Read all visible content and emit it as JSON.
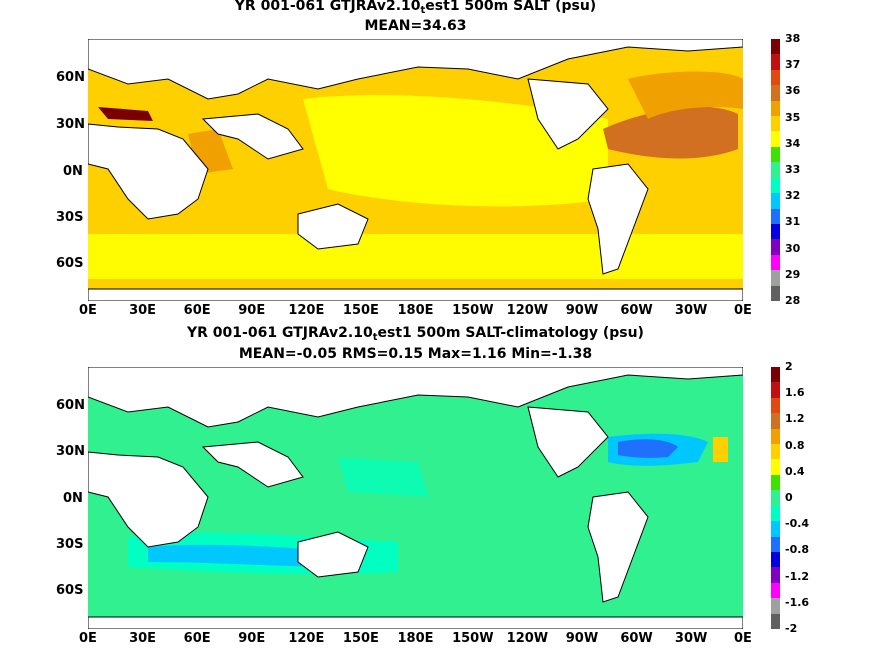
{
  "panels": [
    {
      "title_main": "YR 001-061 GTJRAv2.10",
      "title_sub": "t",
      "title_rest": "est1 500m SALT (psu)",
      "subtitle": "MEAN=34.63",
      "colorbar": {
        "labels": [
          "38",
          "37",
          "36",
          "35",
          "34",
          "33",
          "32",
          "31",
          "30",
          "29",
          "28"
        ],
        "colors": [
          "#7a0000",
          "#c01010",
          "#e04a10",
          "#d07020",
          "#f0a000",
          "#ffd000",
          "#ffff00",
          "#40e000",
          "#30f090",
          "#00ffc0",
          "#00c8ff",
          "#2070ff",
          "#0000e0",
          "#8000c0",
          "#ff00ff",
          "#a0a0a0",
          "#606060"
        ]
      }
    },
    {
      "title_main": "YR 001-061 GTJRAv2.10",
      "title_sub": "t",
      "title_rest": "est1 500m SALT-climatology (psu)",
      "subtitle": "MEAN=-0.05   RMS=0.15   Max=1.16   Min=-1.38",
      "colorbar": {
        "labels": [
          "2",
          "1.6",
          "1.2",
          "0.8",
          "0.4",
          "0",
          "-0.4",
          "-0.8",
          "-1.2",
          "-1.6",
          "-2"
        ],
        "colors": [
          "#7a0000",
          "#c01010",
          "#e04a10",
          "#d07020",
          "#f0a000",
          "#ffd000",
          "#ffff00",
          "#40e000",
          "#30f090",
          "#00ffc0",
          "#00c8ff",
          "#2070ff",
          "#0000e0",
          "#8000c0",
          "#ff00ff",
          "#a0a0a0",
          "#606060"
        ]
      }
    }
  ],
  "lon_ticks": [
    "0E",
    "30E",
    "60E",
    "90E",
    "120E",
    "150E",
    "180E",
    "150W",
    "120W",
    "90W",
    "60W",
    "30W",
    "0E"
  ],
  "lat_ticks": [
    "60N",
    "30N",
    "0N",
    "30S",
    "60S"
  ],
  "map_colors": {
    "panel1_base": "#ffd000",
    "panel1_high": "#ffff00",
    "panel1_warm": "#f0a000",
    "panel1_hot": "#d07020",
    "panel1_max": "#7a0000",
    "panel2_base": "#30f090",
    "panel2_low": "#00ffc0",
    "panel2_lower": "#00c8ff",
    "panel2_min": "#2070ff",
    "land": "#ffffff",
    "coast": "#000000"
  }
}
